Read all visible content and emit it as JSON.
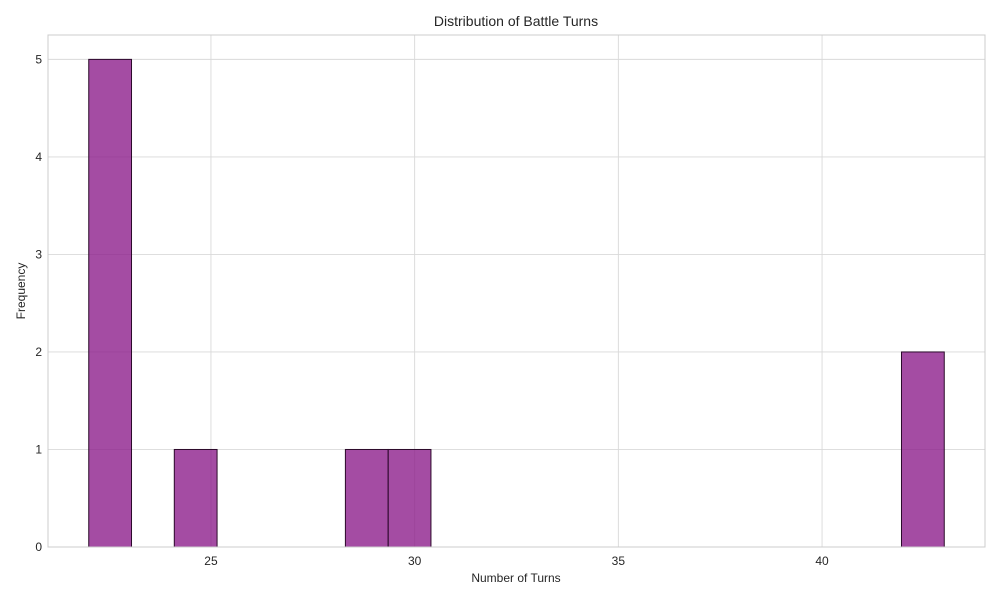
{
  "chart_data": {
    "type": "bar",
    "title": "Distribution of Battle Turns",
    "xlabel": "Number of Turns",
    "ylabel": "Frequency",
    "xlim": [
      21,
      44
    ],
    "ylim": [
      0,
      5.25
    ],
    "xticks": [
      25,
      30,
      35,
      40
    ],
    "yticks": [
      0,
      1,
      2,
      3,
      4,
      5
    ],
    "grid": true,
    "bar_color": "#8b1a89",
    "bar_edge_color": "#2b0a2a",
    "bins": [
      {
        "x_start": 22.0,
        "x_end": 23.05,
        "count": 5
      },
      {
        "x_start": 24.1,
        "x_end": 25.15,
        "count": 1
      },
      {
        "x_start": 28.3,
        "x_end": 29.35,
        "count": 1
      },
      {
        "x_start": 29.35,
        "x_end": 30.4,
        "count": 1
      },
      {
        "x_start": 41.95,
        "x_end": 43.0,
        "count": 2
      }
    ]
  }
}
